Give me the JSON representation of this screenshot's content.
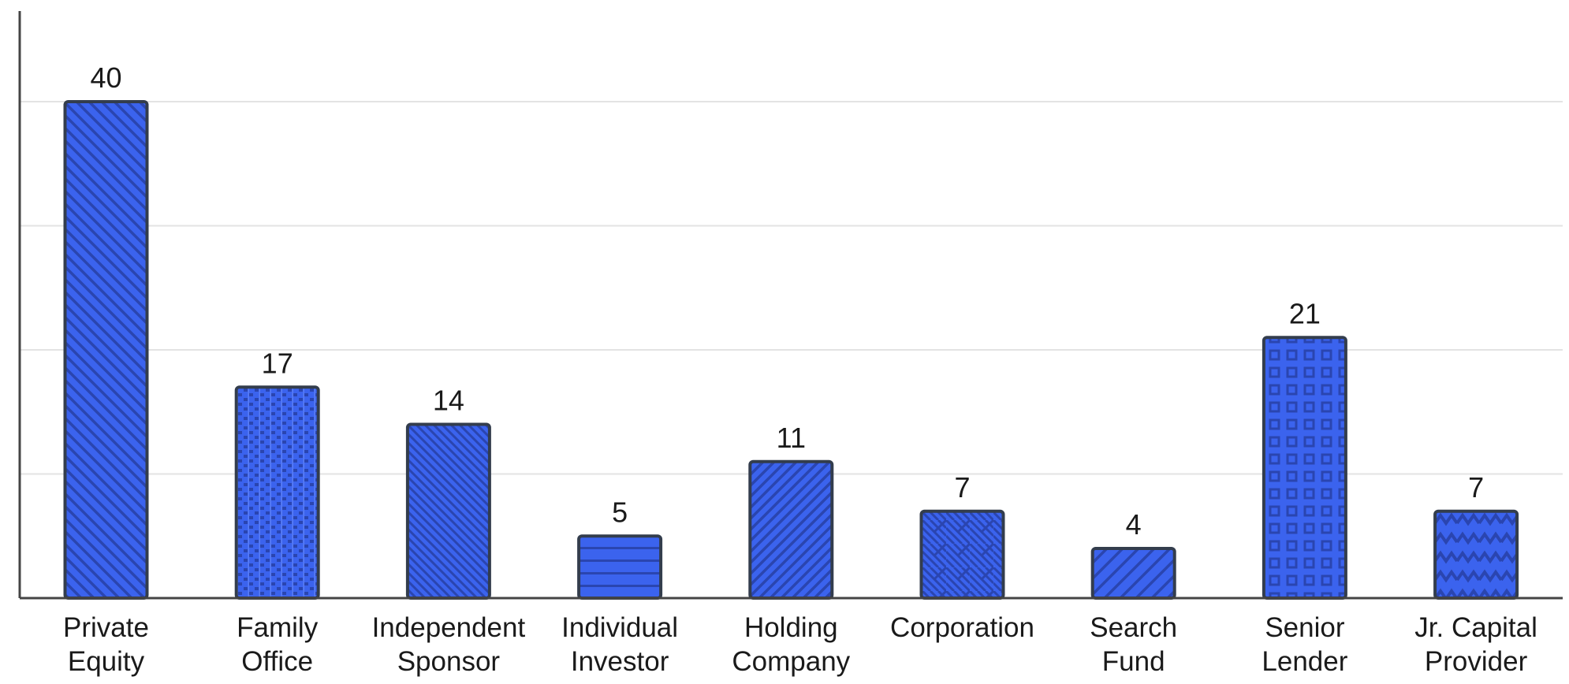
{
  "chart_data": {
    "type": "bar",
    "title": "",
    "xlabel": "",
    "ylabel": "",
    "ylim": [
      0,
      48
    ],
    "grid": true,
    "categories": [
      [
        "Private",
        "Equity"
      ],
      [
        "Family",
        "Office"
      ],
      [
        "Independent",
        "Sponsor"
      ],
      [
        "Individual",
        "Investor"
      ],
      [
        "Holding",
        "Company"
      ],
      [
        "Corporation"
      ],
      [
        "Search",
        "Fund"
      ],
      [
        "Senior",
        "Lender"
      ],
      [
        "Jr. Capital",
        "Provider"
      ]
    ],
    "values": [
      40,
      17,
      14,
      5,
      11,
      7,
      4,
      21,
      7
    ],
    "data_labels": [
      "40",
      "17",
      "14",
      "5",
      "11",
      "7",
      "4",
      "21",
      "7"
    ],
    "patterns": [
      "diag-down",
      "grid-dots",
      "diag-down-dense",
      "horizontal",
      "diag-up",
      "corner-diag",
      "diag-up-wide",
      "squares",
      "waves"
    ],
    "colors": {
      "bar_fill": "#3b63ee",
      "bar_stroke": "#333d4d",
      "pattern": "#2a45b0",
      "axis": "#444444",
      "grid": "#e3e3e3"
    }
  }
}
